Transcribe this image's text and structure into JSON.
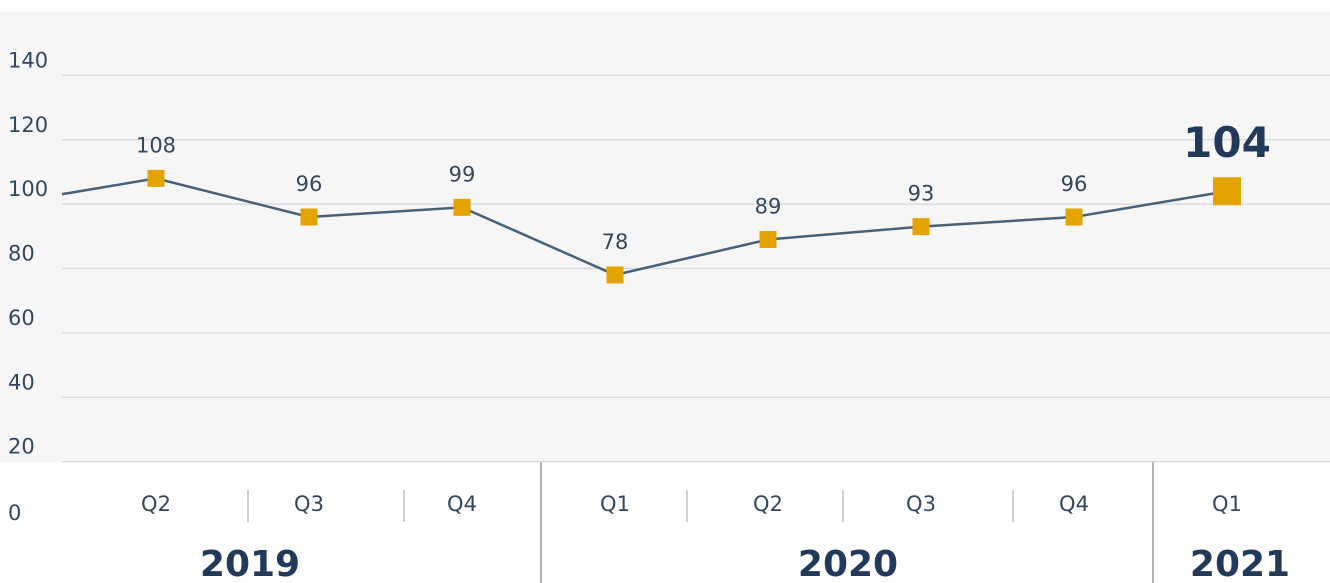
{
  "chart_data": {
    "type": "line",
    "categories": [
      null,
      "Q2",
      "Q3",
      "Q4",
      "Q1",
      "Q2",
      "Q3",
      "Q4",
      "Q1"
    ],
    "values": [
      100,
      108,
      96,
      99,
      78,
      89,
      93,
      96,
      104
    ],
    "years": [
      "2019",
      "2020",
      "2021"
    ],
    "line_color": "#4a6076",
    "marker_color": "#e3a300",
    "ylim": [
      0,
      160
    ],
    "yticks": [
      0,
      20,
      40,
      60,
      80,
      100,
      120,
      140
    ],
    "grid": true
  }
}
